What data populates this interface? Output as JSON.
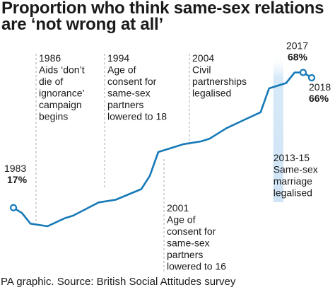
{
  "title": {
    "line1": "Proportion who think same-sex relations",
    "line2": "are ‘not wrong at all’"
  },
  "footer": "PA graphic. Source: British Social Attitudes survey",
  "colors": {
    "line": "#1679b8",
    "dashed": "#aaaaaa",
    "band": "#d6e9f8",
    "text": "#1a1a1a"
  },
  "chart_data": {
    "type": "line",
    "title": "Proportion who think same-sex relations are ‘not wrong at all’",
    "xlabel": "",
    "ylabel": "",
    "grid": false,
    "legend": "none",
    "xlim": [
      1983,
      2018
    ],
    "ylim": [
      10,
      70
    ],
    "unit": "%",
    "series": [
      {
        "points": [
          [
            1983,
            17
          ],
          [
            1984,
            15
          ],
          [
            1985,
            11
          ],
          [
            1987,
            10
          ],
          [
            1989,
            13
          ],
          [
            1990,
            14
          ],
          [
            1993,
            19
          ],
          [
            1995,
            20
          ],
          [
            1998,
            24
          ],
          [
            1999,
            29
          ],
          [
            2000,
            38
          ],
          [
            2002,
            40
          ],
          [
            2003,
            41
          ],
          [
            2005,
            42
          ],
          [
            2006,
            43
          ],
          [
            2007,
            45
          ],
          [
            2008,
            47
          ],
          [
            2010,
            50
          ],
          [
            2012,
            53
          ],
          [
            2013,
            62
          ],
          [
            2015,
            64
          ],
          [
            2016,
            68
          ],
          [
            2017,
            68
          ],
          [
            2018,
            66
          ]
        ]
      }
    ],
    "point_labels": [
      {
        "year": "1983",
        "value": "17%",
        "x": 1983,
        "y": 17
      },
      {
        "year": "2017",
        "value": "68%",
        "x": 2017,
        "y": 68
      },
      {
        "year": "2018",
        "value": "66%",
        "x": 2018,
        "y": 66
      }
    ],
    "annotations": [
      {
        "year": 1986,
        "lines": [
          "1986",
          "Aids ‘don’t",
          "die of",
          "ignorance’",
          "campaign",
          "begins"
        ]
      },
      {
        "year": 1994,
        "lines": [
          "1994",
          "Age of",
          "consent for",
          "same-sex",
          "partners",
          "lowered to 18"
        ]
      },
      {
        "year": 2001,
        "lines": [
          "2001",
          "Age of",
          "consent for",
          "same-sex",
          "partners",
          "lowered to 16"
        ]
      },
      {
        "year": 2004,
        "lines": [
          "2004",
          "Civil",
          "partnerships",
          "legalised"
        ]
      }
    ],
    "band": {
      "from": 2013,
      "to": 2015,
      "lines": [
        "2013-15",
        "Same-sex",
        "marriage",
        "legalised"
      ]
    }
  }
}
